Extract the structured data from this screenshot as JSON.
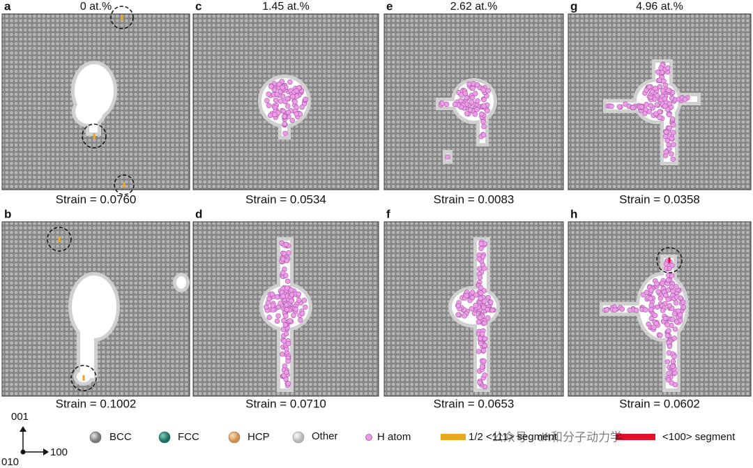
{
  "columns": [
    {
      "heading": "0 at.%",
      "panels": [
        {
          "letter": "a",
          "strain": "Strain = 0.0760"
        },
        {
          "letter": "b",
          "strain": "Strain = 0.1002"
        }
      ]
    },
    {
      "heading": "1.45 at.%",
      "panels": [
        {
          "letter": "c",
          "strain": "Strain = 0.0534"
        },
        {
          "letter": "d",
          "strain": "Strain = 0.0710"
        }
      ]
    },
    {
      "heading": "2.62 at.%",
      "panels": [
        {
          "letter": "e",
          "strain": "Strain = 0.0083"
        },
        {
          "letter": "f",
          "strain": "Strain = 0.0653"
        }
      ]
    },
    {
      "heading": "4.96 at.%",
      "panels": [
        {
          "letter": "g",
          "strain": "Strain = 0.0358"
        },
        {
          "letter": "h",
          "strain": "Strain = 0.0602"
        }
      ]
    }
  ],
  "axes": {
    "up": "001",
    "origin": "010",
    "right": "100"
  },
  "legend": [
    "BCC",
    "FCC",
    "HCP",
    "Other",
    "H atom",
    "1/2 <111> segment",
    "<100> segment"
  ],
  "watermark": "公众号 · dft和分子动力学"
}
